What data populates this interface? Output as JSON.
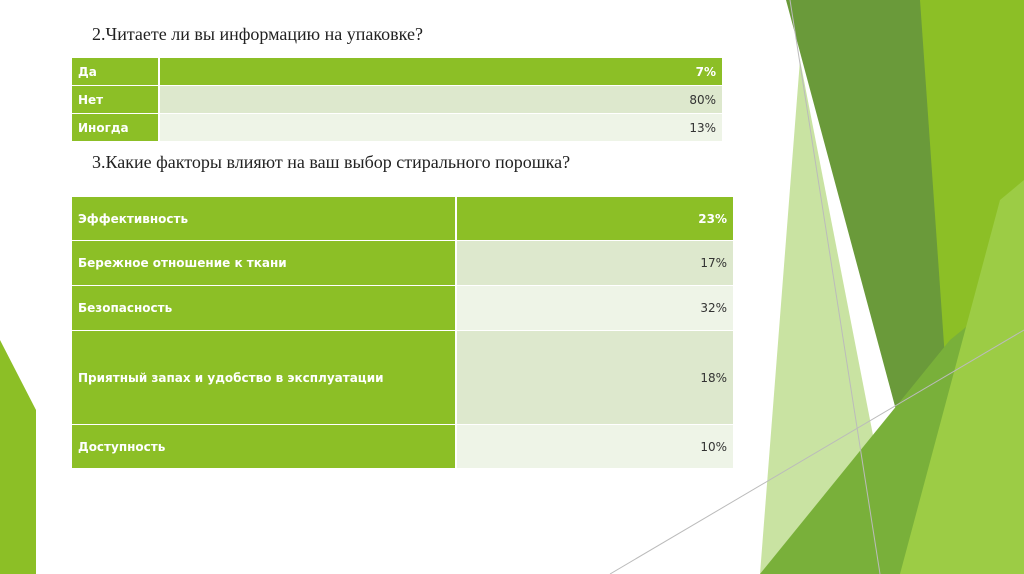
{
  "sections": [
    {
      "title": "2.Читаете ли вы информацию на упаковке?",
      "rows": [
        [
          "Да",
          "7%"
        ],
        [
          "Нет",
          "80%"
        ],
        [
          "Иногда",
          "13%"
        ]
      ]
    },
    {
      "title": "3.Какие факторы влияют на ваш выбор стирального порошка?",
      "rows": [
        [
          "Эффективность",
          "23%"
        ],
        [
          "Бережное отношение к ткани",
          "17%"
        ],
        [
          "Безопасность",
          "32%"
        ],
        [
          "Приятный запах и удобство в эксплуатации",
          "18%"
        ],
        [
          "Доступность",
          "10%"
        ]
      ]
    }
  ]
}
